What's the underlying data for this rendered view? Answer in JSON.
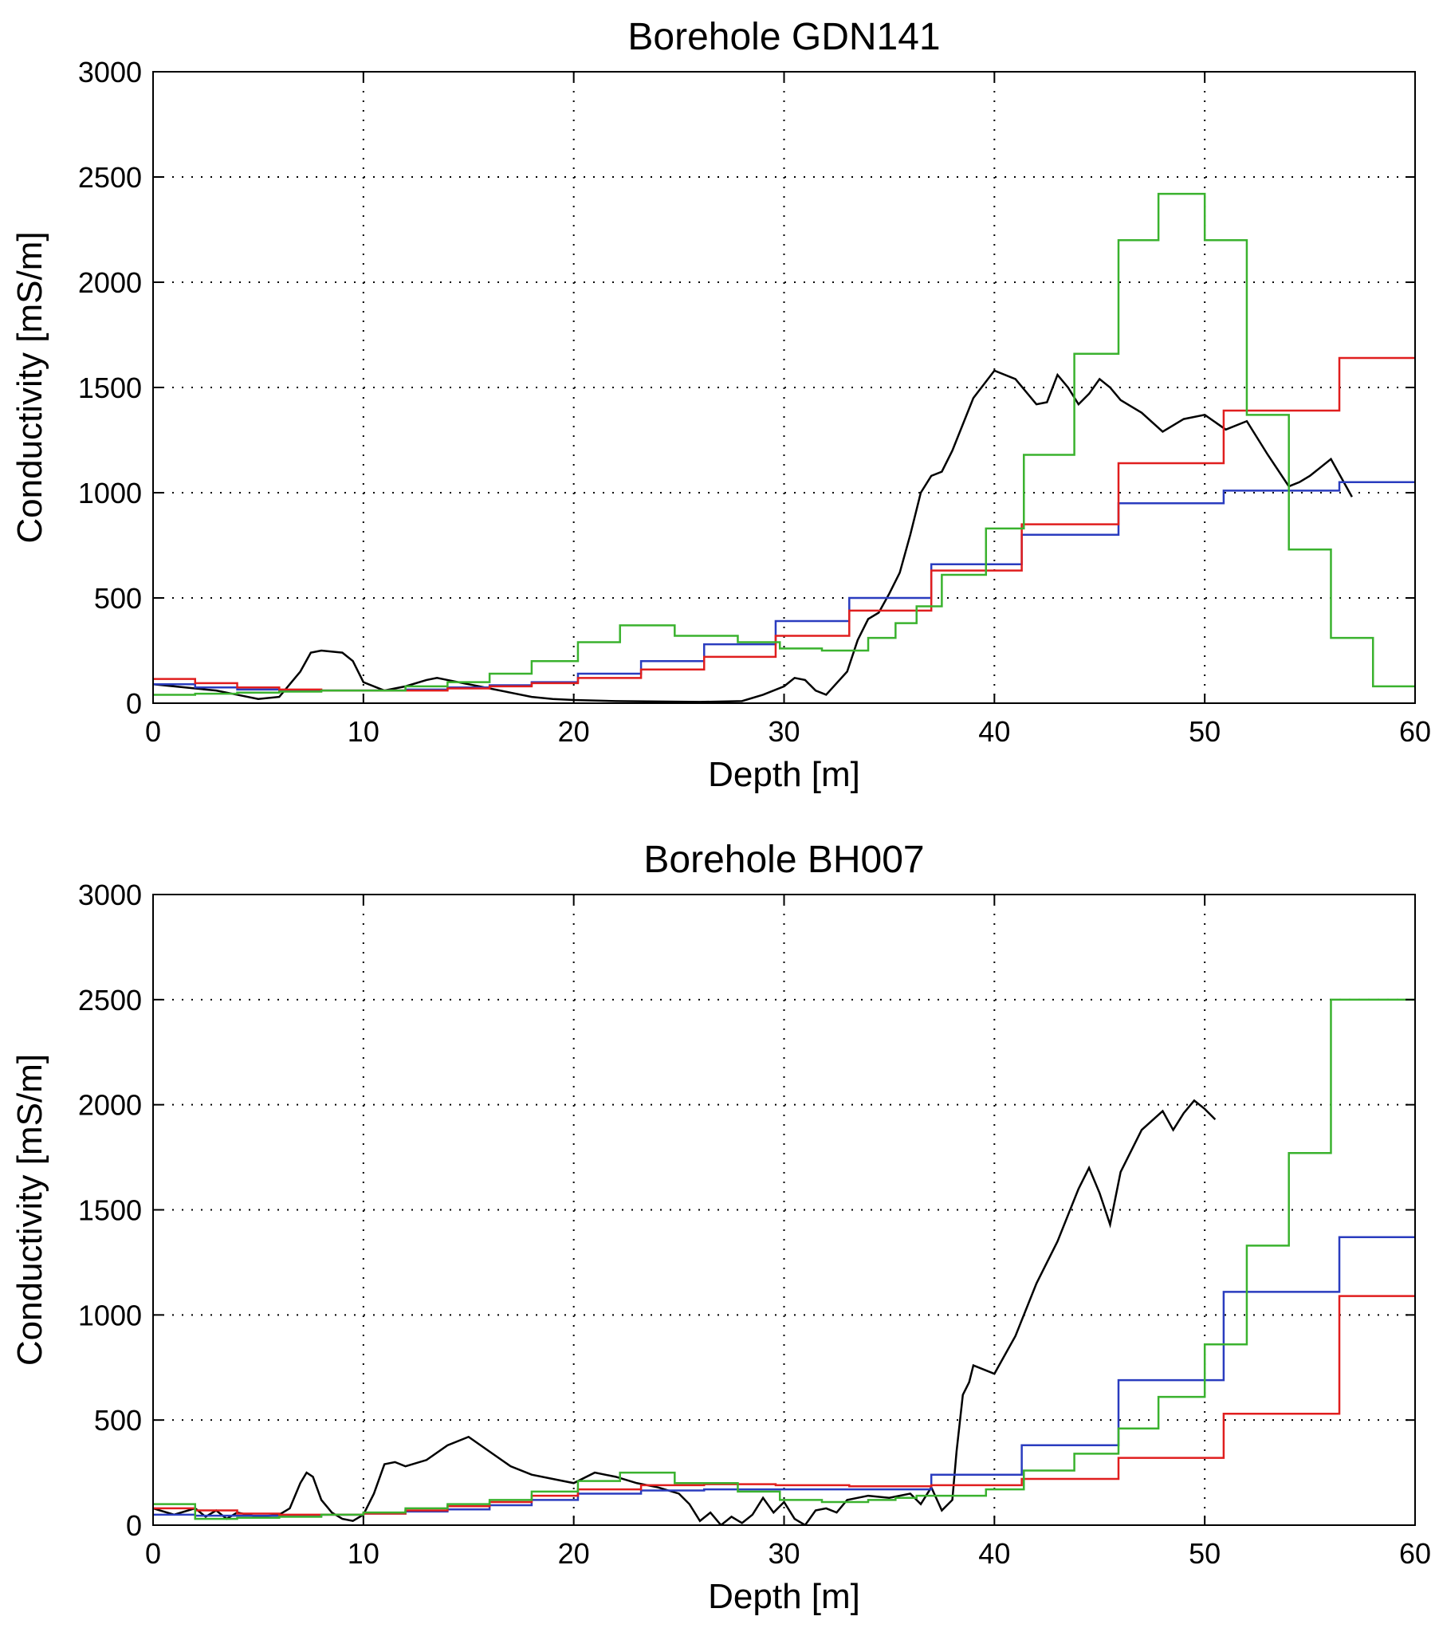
{
  "chart_data": [
    {
      "type": "line",
      "title": "Borehole GDN141",
      "xlabel": "Depth [m]",
      "ylabel": "Conductivity [mS/m]",
      "xlim": [
        0,
        60
      ],
      "ylim": [
        0,
        3000
      ],
      "xticks": [
        0,
        10,
        20,
        30,
        40,
        50,
        60
      ],
      "yticks": [
        0,
        500,
        1000,
        1500,
        2000,
        2500,
        3000
      ],
      "grid": true,
      "series": [
        {
          "color": "#000000",
          "style": "line",
          "x": [
            0,
            1,
            2,
            3,
            4,
            5,
            6,
            7,
            7.5,
            8,
            9,
            9.5,
            10,
            11,
            12,
            13,
            13.5,
            14,
            15,
            16,
            17,
            18,
            19,
            20,
            22,
            24,
            26,
            28,
            29,
            30,
            30.5,
            31,
            31.5,
            32,
            33,
            33.5,
            34,
            34.5,
            35,
            35.5,
            36,
            36.5,
            37,
            37.5,
            38,
            39,
            40,
            41,
            42,
            42.5,
            43,
            43.5,
            44,
            44.5,
            45,
            45.5,
            46,
            47,
            48,
            49,
            50,
            51,
            52,
            53,
            54,
            54.5,
            55,
            56,
            57
          ],
          "y": [
            90,
            80,
            70,
            60,
            40,
            20,
            30,
            150,
            240,
            250,
            240,
            200,
            100,
            60,
            80,
            110,
            120,
            110,
            90,
            70,
            50,
            30,
            20,
            15,
            10,
            8,
            6,
            10,
            40,
            80,
            120,
            110,
            60,
            40,
            150,
            300,
            400,
            430,
            520,
            620,
            800,
            1000,
            1080,
            1100,
            1200,
            1450,
            1580,
            1540,
            1420,
            1430,
            1560,
            1500,
            1420,
            1470,
            1540,
            1500,
            1440,
            1380,
            1290,
            1350,
            1370,
            1300,
            1340,
            1180,
            1030,
            1050,
            1080,
            1160,
            980
          ]
        },
        {
          "color": "#2a3cbf",
          "style": "step",
          "x": [
            0,
            2,
            4,
            6,
            8,
            10,
            12,
            14,
            16,
            18,
            20.2,
            23.2,
            26.2,
            29.6,
            33.1,
            37,
            41.3,
            45.9,
            50.9,
            56.4,
            60
          ],
          "y": [
            90,
            75,
            65,
            60,
            60,
            60,
            65,
            75,
            85,
            100,
            140,
            200,
            280,
            390,
            500,
            660,
            800,
            950,
            1010,
            1050,
            1050
          ]
        },
        {
          "color": "#e01e1e",
          "style": "step",
          "x": [
            0,
            2,
            4,
            6,
            8,
            10,
            12,
            14,
            16,
            18,
            20.2,
            23.2,
            26.2,
            29.6,
            33.1,
            37,
            41.3,
            45.9,
            50.9,
            56.4,
            60
          ],
          "y": [
            115,
            95,
            75,
            65,
            60,
            60,
            60,
            70,
            80,
            95,
            120,
            160,
            220,
            320,
            440,
            630,
            850,
            1140,
            1390,
            1640,
            1640
          ]
        },
        {
          "color": "#3ab22e",
          "style": "step",
          "x": [
            0,
            2,
            4,
            6,
            8,
            10,
            12,
            14,
            16,
            18,
            20.2,
            22.2,
            24.8,
            27.8,
            29.8,
            31.8,
            34,
            35.3,
            36.3,
            37.5,
            39.6,
            41.4,
            43.8,
            45.9,
            47.8,
            50,
            52,
            54,
            56,
            58,
            60
          ],
          "y": [
            40,
            45,
            50,
            55,
            60,
            60,
            80,
            100,
            140,
            200,
            290,
            370,
            320,
            290,
            260,
            250,
            310,
            380,
            460,
            610,
            830,
            1180,
            1660,
            2200,
            2420,
            2200,
            1370,
            730,
            310,
            80,
            80
          ]
        }
      ]
    },
    {
      "type": "line",
      "title": "Borehole BH007",
      "xlabel": "Depth [m]",
      "ylabel": "Conductivity [mS/m]",
      "xlim": [
        0,
        60
      ],
      "ylim": [
        0,
        3000
      ],
      "xticks": [
        0,
        10,
        20,
        30,
        40,
        50,
        60
      ],
      "yticks": [
        0,
        500,
        1000,
        1500,
        2000,
        2500,
        3000
      ],
      "grid": true,
      "series": [
        {
          "color": "#000000",
          "style": "line",
          "x": [
            0,
            1,
            2,
            2.5,
            3,
            3.5,
            4,
            5,
            6,
            6.5,
            7,
            7.3,
            7.6,
            8,
            8.5,
            9,
            9.5,
            10,
            10.5,
            11,
            11.5,
            12,
            13,
            14,
            15,
            16,
            17,
            18,
            19,
            20,
            21,
            22,
            23,
            24,
            25,
            25.5,
            26,
            26.5,
            27,
            27.5,
            28,
            28.5,
            29,
            29.5,
            30,
            30.5,
            31,
            31.5,
            32,
            32.5,
            33,
            34,
            35,
            36,
            36.5,
            37,
            37.5,
            38,
            38.2,
            38.5,
            38.8,
            39,
            40,
            41,
            42,
            43,
            44,
            44.5,
            45,
            45.5,
            46,
            47,
            48,
            48.5,
            49,
            49.5,
            50,
            50.5
          ],
          "y": [
            80,
            50,
            80,
            40,
            70,
            30,
            60,
            40,
            50,
            80,
            200,
            250,
            230,
            120,
            60,
            30,
            20,
            50,
            150,
            290,
            300,
            280,
            310,
            380,
            420,
            350,
            280,
            240,
            220,
            200,
            250,
            230,
            200,
            180,
            150,
            100,
            20,
            60,
            0,
            40,
            10,
            50,
            130,
            60,
            110,
            30,
            0,
            70,
            80,
            60,
            120,
            140,
            130,
            150,
            100,
            180,
            70,
            120,
            350,
            620,
            680,
            760,
            720,
            900,
            1150,
            1350,
            1600,
            1700,
            1580,
            1430,
            1680,
            1880,
            1970,
            1880,
            1960,
            2020,
            1980,
            1930
          ]
        },
        {
          "color": "#2a3cbf",
          "style": "step",
          "x": [
            0,
            2,
            4,
            6,
            8,
            10,
            12,
            14,
            16,
            18,
            20.2,
            23.2,
            26.2,
            29.6,
            33.1,
            37,
            41.3,
            45.9,
            50.9,
            56.4,
            60
          ],
          "y": [
            50,
            45,
            45,
            45,
            50,
            55,
            65,
            75,
            95,
            120,
            150,
            165,
            170,
            170,
            170,
            240,
            380,
            690,
            1110,
            1370,
            1370
          ]
        },
        {
          "color": "#e01e1e",
          "style": "step",
          "x": [
            0,
            2,
            4,
            6,
            8,
            10,
            12,
            14,
            16,
            18,
            20.2,
            23.2,
            26.2,
            29.6,
            33.1,
            37,
            41.3,
            45.9,
            50.9,
            56.4,
            60
          ],
          "y": [
            80,
            70,
            55,
            50,
            50,
            55,
            70,
            90,
            110,
            140,
            170,
            190,
            195,
            190,
            185,
            190,
            220,
            320,
            530,
            1090,
            1090
          ]
        },
        {
          "color": "#3ab22e",
          "style": "step",
          "x": [
            0,
            2,
            4,
            6,
            8,
            10,
            12,
            14,
            16,
            18,
            20.2,
            22.2,
            24.8,
            27.8,
            29.8,
            31.8,
            34,
            35.3,
            36.3,
            37.5,
            39.6,
            41.4,
            43.8,
            45.9,
            47.8,
            50,
            52,
            54,
            56,
            58,
            60
          ],
          "y": [
            100,
            30,
            35,
            40,
            50,
            60,
            80,
            100,
            120,
            160,
            210,
            250,
            200,
            160,
            120,
            110,
            120,
            130,
            140,
            140,
            170,
            260,
            340,
            460,
            610,
            860,
            1330,
            1770,
            2500,
            2500,
            2500
          ]
        }
      ]
    }
  ]
}
